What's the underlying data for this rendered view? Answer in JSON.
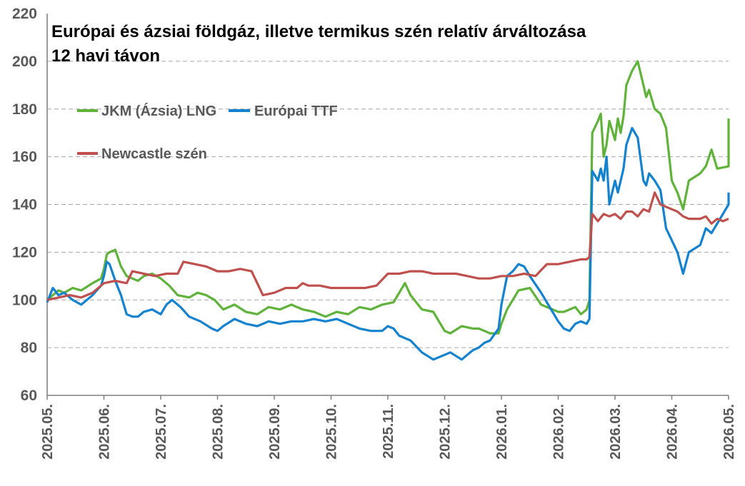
{
  "chart_data": {
    "type": "line",
    "title_lines": [
      "Európai és ázsiai földgáz, illetve termikus szén relatív árváltozása",
      "12 havi távon"
    ],
    "xlabel": "",
    "ylabel": "",
    "ylim": [
      60,
      220
    ],
    "yticks": [
      60,
      80,
      100,
      120,
      140,
      160,
      180,
      200,
      220
    ],
    "xlim": [
      0,
      12
    ],
    "xtick_labels": [
      "2025.05.",
      "2025.06.",
      "2025.07.",
      "2025.08.",
      "2025.09.",
      "2025.10.",
      "2025.11.",
      "2025.12.",
      "2026.01.",
      "2026.02.",
      "2026.03.",
      "2026.04.",
      "2026.05."
    ],
    "grid": "horizontal dashed",
    "legend_placement": "top-left",
    "series": [
      {
        "name": "JKM (Ázsia) LNG",
        "color": "#5FB33A",
        "x": [
          0,
          0.1,
          0.2,
          0.3,
          0.45,
          0.6,
          0.8,
          0.95,
          1.0,
          1.05,
          1.1,
          1.2,
          1.3,
          1.4,
          1.5,
          1.6,
          1.7,
          1.85,
          2.0,
          2.15,
          2.3,
          2.5,
          2.65,
          2.8,
          2.95,
          3.1,
          3.3,
          3.5,
          3.7,
          3.9,
          4.1,
          4.3,
          4.5,
          4.7,
          4.9,
          5.1,
          5.3,
          5.5,
          5.7,
          5.9,
          6.1,
          6.2,
          6.3,
          6.4,
          6.6,
          6.8,
          7.0,
          7.1,
          7.3,
          7.5,
          7.6,
          7.7,
          7.8,
          7.95,
          8.0,
          8.1,
          8.2,
          8.3,
          8.5,
          8.7,
          8.9,
          9.0,
          9.1,
          9.2,
          9.3,
          9.4,
          9.5,
          9.55,
          9.6,
          9.7,
          9.75,
          9.8,
          9.85,
          9.9,
          10.0,
          10.05,
          10.1,
          10.15,
          10.2,
          10.3,
          10.4,
          10.5,
          10.55,
          10.6,
          10.7,
          10.8,
          10.9,
          11.0,
          11.1,
          11.2,
          11.3,
          11.5,
          11.6,
          11.7,
          11.8,
          12.0,
          12.0
        ],
        "values": [
          100,
          102,
          104,
          103,
          105,
          104,
          107,
          109,
          113,
          119,
          120,
          121,
          114,
          110,
          109,
          108,
          110,
          111,
          109,
          106,
          102,
          101,
          103,
          102,
          100,
          96,
          98,
          95,
          94,
          97,
          96,
          98,
          96,
          95,
          93,
          95,
          94,
          97,
          96,
          98,
          99,
          103,
          107,
          102,
          96,
          95,
          87,
          86,
          89,
          88,
          88,
          87,
          86,
          86,
          90,
          96,
          100,
          104,
          105,
          98,
          96,
          95,
          95,
          96,
          97,
          94,
          96,
          100,
          170,
          175,
          178,
          160,
          165,
          175,
          167,
          176,
          170,
          177,
          190,
          196,
          200,
          190,
          185,
          188,
          180,
          178,
          172,
          150,
          145,
          138,
          150,
          153,
          156,
          163,
          155,
          156,
          176
        ]
      },
      {
        "name": "Európai TTF",
        "color": "#1482CE",
        "x": [
          0,
          0.05,
          0.1,
          0.2,
          0.3,
          0.45,
          0.6,
          0.8,
          0.95,
          1.0,
          1.05,
          1.1,
          1.2,
          1.3,
          1.4,
          1.5,
          1.6,
          1.7,
          1.85,
          2.0,
          2.1,
          2.2,
          2.35,
          2.5,
          2.7,
          2.9,
          3.0,
          3.1,
          3.3,
          3.5,
          3.7,
          3.9,
          4.1,
          4.3,
          4.5,
          4.7,
          4.9,
          5.1,
          5.3,
          5.5,
          5.7,
          5.9,
          6.0,
          6.1,
          6.2,
          6.3,
          6.4,
          6.6,
          6.8,
          7.0,
          7.1,
          7.3,
          7.5,
          7.6,
          7.7,
          7.8,
          7.95,
          8.0,
          8.1,
          8.2,
          8.3,
          8.4,
          8.5,
          8.7,
          8.9,
          9.0,
          9.1,
          9.2,
          9.3,
          9.4,
          9.5,
          9.55,
          9.6,
          9.7,
          9.75,
          9.8,
          9.85,
          9.9,
          10.0,
          10.05,
          10.1,
          10.15,
          10.2,
          10.3,
          10.4,
          10.5,
          10.55,
          10.6,
          10.7,
          10.8,
          10.9,
          11.0,
          11.1,
          11.2,
          11.3,
          11.5,
          11.6,
          11.7,
          11.8,
          12.0,
          12.0
        ],
        "values": [
          99,
          102,
          105,
          102,
          103,
          100,
          98,
          102,
          106,
          110,
          116,
          115,
          108,
          102,
          94,
          93,
          93,
          95,
          96,
          94,
          98,
          100,
          97,
          93,
          91,
          88,
          87,
          89,
          92,
          90,
          89,
          91,
          90,
          91,
          91,
          92,
          91,
          92,
          90,
          88,
          87,
          87,
          89,
          88,
          85,
          84,
          83,
          78,
          75,
          77,
          78,
          75,
          79,
          80,
          82,
          83,
          88,
          98,
          110,
          112,
          115,
          114,
          110,
          103,
          95,
          91,
          88,
          87,
          90,
          91,
          90,
          92,
          154,
          150,
          155,
          150,
          160,
          140,
          150,
          145,
          150,
          155,
          165,
          172,
          168,
          150,
          148,
          153,
          150,
          146,
          130,
          125,
          120,
          111,
          120,
          123,
          130,
          128,
          132,
          140,
          145
        ]
      },
      {
        "name": "Newcastle szén",
        "color": "#C0504D",
        "x": [
          0,
          0.2,
          0.4,
          0.6,
          0.8,
          1.0,
          1.2,
          1.4,
          1.5,
          1.7,
          1.9,
          2.1,
          2.3,
          2.4,
          2.6,
          2.8,
          3.0,
          3.2,
          3.4,
          3.6,
          3.8,
          4.0,
          4.2,
          4.4,
          4.5,
          4.6,
          4.8,
          5.0,
          5.2,
          5.4,
          5.6,
          5.8,
          6.0,
          6.2,
          6.4,
          6.6,
          6.8,
          7.0,
          7.2,
          7.4,
          7.6,
          7.8,
          8.0,
          8.2,
          8.4,
          8.6,
          8.8,
          9.0,
          9.2,
          9.4,
          9.5,
          9.55,
          9.6,
          9.7,
          9.8,
          9.9,
          10.0,
          10.1,
          10.2,
          10.3,
          10.4,
          10.5,
          10.6,
          10.7,
          10.8,
          10.9,
          11.0,
          11.1,
          11.2,
          11.3,
          11.4,
          11.5,
          11.6,
          11.7,
          11.8,
          11.9,
          12.0
        ],
        "values": [
          100,
          101,
          102,
          101,
          103,
          107,
          108,
          107,
          112,
          111,
          110,
          111,
          111,
          116,
          115,
          114,
          112,
          112,
          113,
          112,
          102,
          103,
          105,
          105,
          107,
          106,
          106,
          105,
          105,
          105,
          105,
          106,
          111,
          111,
          112,
          112,
          111,
          111,
          111,
          110,
          109,
          109,
          110,
          110,
          111,
          110,
          115,
          115,
          116,
          117,
          117,
          118,
          136,
          133,
          136,
          135,
          136,
          134,
          137,
          137,
          135,
          138,
          137,
          145,
          140,
          139,
          138,
          137,
          135,
          134,
          134,
          134,
          135,
          132,
          134,
          133,
          134
        ]
      }
    ]
  }
}
